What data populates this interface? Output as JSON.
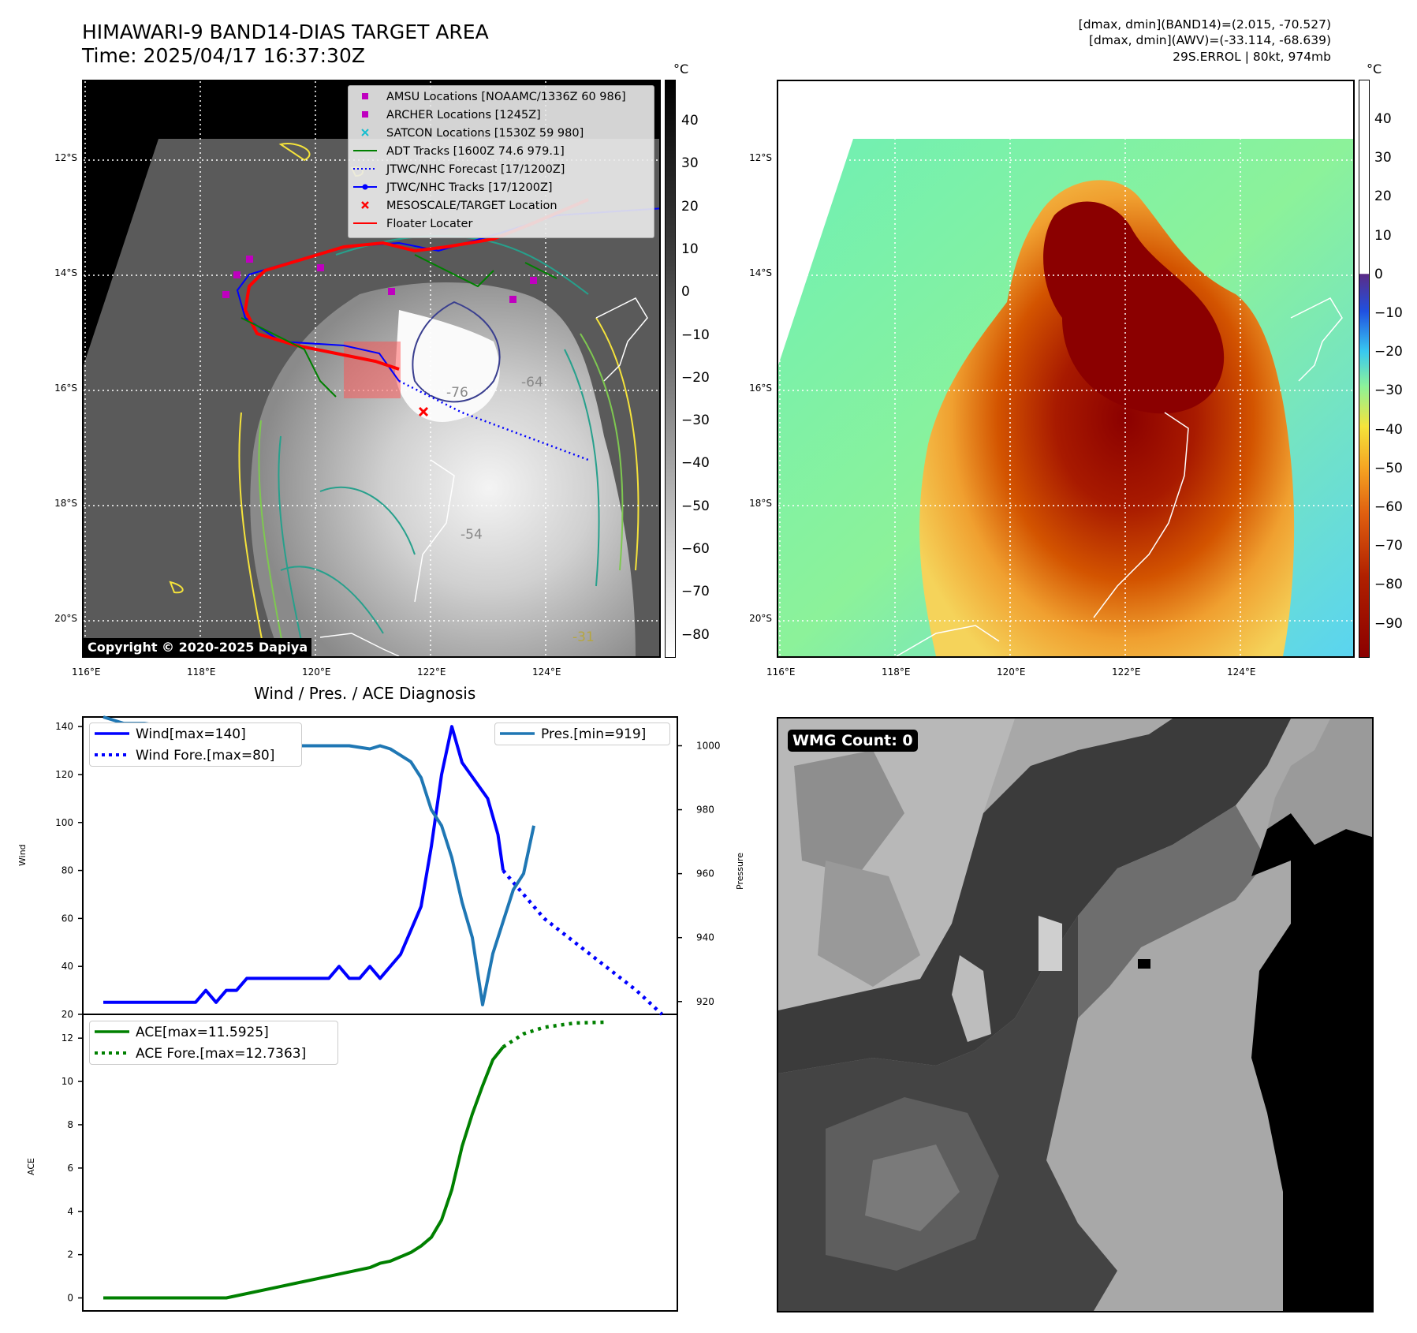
{
  "header": {
    "title_line1": "HIMAWARI-9 BAND14-DIAS TARGET AREA",
    "title_line2": "Time: 2025/04/17 16:37:30Z",
    "info_line1": "[dmax, dmin](BAND14)=(2.015, -70.527)",
    "info_line2": "[dmax, dmin](AWV)=(-33.114, -68.639)",
    "info_line3": "29S.ERROL | 80kt, 974mb"
  },
  "maps": {
    "lat_ticks": [
      "12°S",
      "14°S",
      "16°S",
      "18°S",
      "20°S"
    ],
    "lon_ticks": [
      "116°E",
      "118°E",
      "120°E",
      "122°E",
      "124°E"
    ],
    "copyright": "Copyright © 2020-2025 Dapiya"
  },
  "left_colorbar": {
    "unit": "°C",
    "ticks": [
      "40",
      "30",
      "20",
      "10",
      "0",
      "−10",
      "−20",
      "−30",
      "−40",
      "−50",
      "−60",
      "−70",
      "−80"
    ]
  },
  "right_colorbar": {
    "unit": "°C",
    "ticks": [
      "40",
      "30",
      "20",
      "10",
      "0",
      "−10",
      "−20",
      "−30",
      "−40",
      "−50",
      "−60",
      "−70",
      "−80",
      "−90"
    ]
  },
  "map_legend": [
    {
      "label": "AMSU Locations [NOAAMC/1336Z 60 986]",
      "symbol": "square",
      "color": "#bf00bf"
    },
    {
      "label": "ARCHER Locations [1245Z]",
      "symbol": "square",
      "color": "#bf00bf"
    },
    {
      "label": "SATCON Locations [1530Z 59 980]",
      "symbol": "x",
      "color": "#17becf"
    },
    {
      "label": "ADT Tracks [1600Z 74.6 979.1]",
      "symbol": "line",
      "color": "#008000"
    },
    {
      "label": "JTWC/NHC Forecast [17/1200Z]",
      "symbol": "dotted",
      "color": "#0000ff"
    },
    {
      "label": "JTWC/NHC Tracks [17/1200Z]",
      "symbol": "line-dot",
      "color": "#0000ff"
    },
    {
      "label": "MESOSCALE/TARGET Location",
      "symbol": "x",
      "color": "#ff0000"
    },
    {
      "label": "Floater Locater",
      "symbol": "line",
      "color": "#ff0000"
    }
  ],
  "contour_labels": [
    "-76",
    "-64",
    "-54",
    "-31"
  ],
  "diagnosis": {
    "title": "Wind / Pres. / ACE Diagnosis",
    "wind_ylabel": "Wind",
    "pressure_ylabel": "Pressure",
    "ace_ylabel": "ACE",
    "wind_legend": [
      {
        "label": "Wind[max=140]",
        "style": "solid",
        "color": "#0000ff"
      },
      {
        "label": "Wind Fore.[max=80]",
        "style": "dotted",
        "color": "#0000ff"
      }
    ],
    "pressure_legend": [
      {
        "label": "Pres.[min=919]",
        "style": "solid",
        "color": "#1f77b4"
      }
    ],
    "ace_legend": [
      {
        "label": "ACE[max=11.5925]",
        "style": "solid",
        "color": "#008000"
      },
      {
        "label": "ACE Fore.[max=12.7363]",
        "style": "dotted",
        "color": "#008000"
      }
    ]
  },
  "wmg": {
    "label": "WMG Count: 0"
  },
  "chart_data": [
    {
      "type": "line",
      "title": "Wind / Pres. / ACE Diagnosis",
      "ylabel": "Wind",
      "ylim": [
        20,
        144
      ],
      "y_ticks": [
        20,
        40,
        60,
        80,
        100,
        120,
        140
      ],
      "y2label": "Pressure",
      "y2lim": [
        916,
        1009
      ],
      "y2_ticks": [
        920,
        940,
        960,
        980,
        1000
      ],
      "x": [
        0,
        1,
        2,
        3,
        4,
        5,
        6,
        7,
        8,
        9,
        10,
        11,
        12,
        13,
        14,
        15,
        16,
        17,
        18,
        19,
        20,
        21,
        22,
        23,
        24,
        25,
        26,
        27,
        28,
        29,
        30,
        31,
        32,
        33,
        34,
        35,
        36,
        37,
        38,
        39,
        40,
        41,
        42,
        43,
        44,
        45,
        46,
        47,
        48,
        49,
        50,
        51,
        52,
        53,
        54,
        55,
        56,
        57,
        58,
        59,
        60,
        61,
        62,
        63,
        64,
        65,
        66,
        67,
        68,
        69,
        70,
        71,
        72,
        73,
        74,
        75,
        76,
        77,
        78,
        79,
        80,
        81,
        82,
        83,
        84,
        85,
        86,
        87,
        88,
        89,
        90,
        91,
        92,
        93,
        94,
        95,
        96,
        97,
        98,
        99,
        100,
        101,
        102,
        103,
        104,
        105,
        106,
        107,
        108,
        109
      ],
      "xlim": [
        -4,
        112
      ],
      "series": [
        {
          "name": "Wind[max=140]",
          "axis": "left",
          "style": "solid",
          "color": "#0000ff",
          "points": [
            [
              0,
              25
            ],
            [
              18,
              25
            ],
            [
              20,
              30
            ],
            [
              22,
              25
            ],
            [
              24,
              30
            ],
            [
              26,
              30
            ],
            [
              28,
              35
            ],
            [
              44,
              35
            ],
            [
              46,
              40
            ],
            [
              48,
              35
            ],
            [
              50,
              35
            ],
            [
              52,
              40
            ],
            [
              54,
              35
            ],
            [
              58,
              45
            ],
            [
              62,
              65
            ],
            [
              64,
              90
            ],
            [
              66,
              120
            ],
            [
              68,
              140
            ],
            [
              70,
              125
            ],
            [
              75,
              110
            ],
            [
              77,
              95
            ],
            [
              78,
              80
            ]
          ]
        },
        {
          "name": "Wind Fore.[max=80]",
          "axis": "left",
          "style": "dotted",
          "color": "#0000ff",
          "points": [
            [
              78,
              80
            ],
            [
              82,
              70
            ],
            [
              86,
              60
            ],
            [
              92,
              50
            ],
            [
              98,
              40
            ],
            [
              104,
              30
            ],
            [
              109,
              20
            ]
          ]
        },
        {
          "name": "Pres.[min=919]",
          "axis": "right",
          "style": "solid",
          "color": "#1f77b4",
          "points": [
            [
              0,
              1009
            ],
            [
              4,
              1007
            ],
            [
              8,
              1007
            ],
            [
              12,
              1006
            ],
            [
              16,
              1003
            ],
            [
              20,
              1001
            ],
            [
              24,
              1001
            ],
            [
              30,
              1000
            ],
            [
              48,
              1000
            ],
            [
              52,
              999
            ],
            [
              54,
              1000
            ],
            [
              56,
              999
            ],
            [
              58,
              997
            ],
            [
              60,
              995
            ],
            [
              62,
              990
            ],
            [
              64,
              980
            ],
            [
              66,
              975
            ],
            [
              68,
              965
            ],
            [
              70,
              951
            ],
            [
              72,
              940
            ],
            [
              74,
              919
            ],
            [
              76,
              935
            ],
            [
              78,
              945
            ],
            [
              80,
              955
            ],
            [
              82,
              960
            ],
            [
              84,
              975
            ]
          ]
        },
        {
          "name": "ACE[max=11.5925]",
          "axis": "ace",
          "style": "solid",
          "color": "#008000",
          "points": [
            [
              0,
              0
            ],
            [
              24,
              0
            ],
            [
              34,
              0.5
            ],
            [
              44,
              1
            ],
            [
              48,
              1.2
            ],
            [
              52,
              1.4
            ],
            [
              54,
              1.6
            ],
            [
              56,
              1.7
            ],
            [
              58,
              1.9
            ],
            [
              60,
              2.1
            ],
            [
              62,
              2.4
            ],
            [
              64,
              2.8
            ],
            [
              66,
              3.6
            ],
            [
              68,
              5
            ],
            [
              70,
              7
            ],
            [
              72,
              8.5
            ],
            [
              74,
              9.8
            ],
            [
              76,
              11
            ],
            [
              78,
              11.59
            ]
          ]
        },
        {
          "name": "ACE Fore.[max=12.7363]",
          "axis": "ace",
          "style": "dotted",
          "color": "#008000",
          "points": [
            [
              78,
              11.59
            ],
            [
              82,
              12.2
            ],
            [
              86,
              12.5
            ],
            [
              92,
              12.7
            ],
            [
              98,
              12.74
            ]
          ]
        }
      ],
      "ace_ylim": [
        -0.6,
        13.1
      ],
      "ace_y_ticks": [
        0,
        2,
        4,
        6,
        8,
        10,
        12
      ]
    }
  ]
}
